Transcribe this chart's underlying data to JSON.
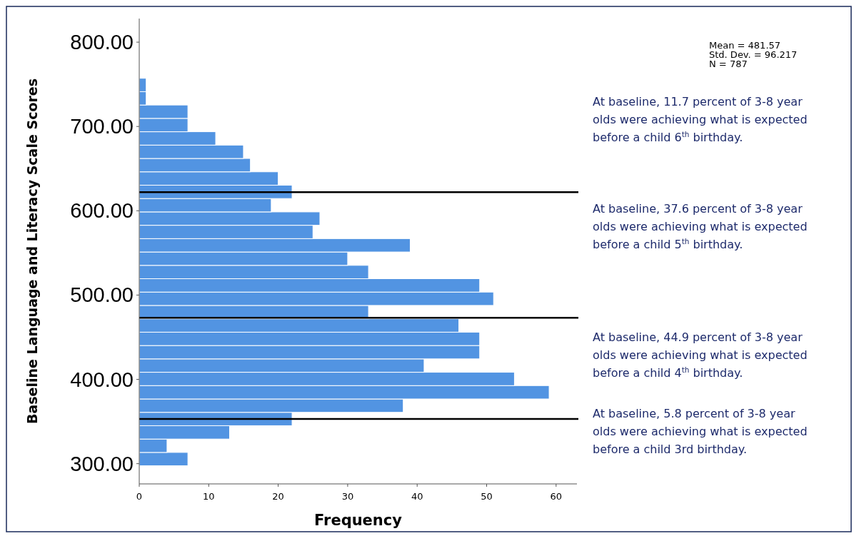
{
  "chart_data": {
    "type": "histogram",
    "orientation": "horizontal",
    "xlabel": "Frequency",
    "ylabel": "Baseline Language and Literacy Scale Scores",
    "bins": [
      297.5,
      313.35,
      329.2,
      345.05,
      360.9,
      376.75,
      392.6,
      408.45,
      424.3,
      440.15,
      456,
      471.85,
      487.7,
      503.55,
      519.4,
      535.25,
      551.1,
      566.95,
      582.8,
      598.65,
      614.5,
      630.35,
      646.2,
      662.05,
      677.9,
      693.75,
      709.6,
      725.45,
      741.3,
      757.15
    ],
    "values": [
      7,
      4,
      13,
      22,
      38,
      59,
      54,
      41,
      49,
      49,
      46,
      33,
      51,
      49,
      33,
      30,
      39,
      25,
      26,
      19,
      22,
      20,
      16,
      15,
      11,
      7,
      7,
      1,
      1
    ],
    "color": "#5294e2",
    "xlim": [
      0,
      63
    ],
    "xticks": [
      0,
      10,
      20,
      30,
      40,
      50,
      60
    ],
    "ylim": [
      276,
      828
    ],
    "yticks": [
      {
        "value": 300,
        "label": "300.00"
      },
      {
        "value": 400,
        "label": "400.00"
      },
      {
        "value": 500,
        "label": "500.00"
      },
      {
        "value": 600,
        "label": "600.00"
      },
      {
        "value": 700,
        "label": "700.00"
      },
      {
        "value": 800,
        "label": "800.00"
      }
    ],
    "ref_lines": [
      {
        "axis": "y",
        "value": 622,
        "color": "#000000"
      },
      {
        "axis": "y",
        "value": 473,
        "color": "#000000"
      },
      {
        "axis": "y",
        "value": 353,
        "color": "#000000"
      }
    ],
    "annotations": [
      "Mean = 481.57",
      "Std. Dev. = 96.217",
      "N = 787",
      "At baseline, 11.7 percent of 3-8 year olds were achieving what is expected before a child 6$^{th}$ birthday.",
      "At baseline, 37.6 percent of 3-8 year olds were achieving what is expected before a child 5$^{th}$ birthday.",
      "At baseline, 44.9 percent of 3-8 year olds were achieving what is expected before a child 4$^{th}$ birthday.",
      "At baseline, 5.8 percent of 3-8 year olds were achieving what is expected before a child 3rd birthday."
    ],
    "grid": false
  }
}
